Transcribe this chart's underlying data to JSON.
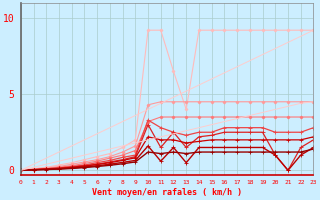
{
  "xlabel": "Vent moyen/en rafales ( km/h )",
  "background_color": "#cceeff",
  "grid_color": "#aacccc",
  "xlim": [
    0,
    23
  ],
  "ylim": [
    -0.3,
    11
  ],
  "yticks": [
    0,
    5,
    10
  ],
  "xticks": [
    0,
    1,
    2,
    3,
    4,
    5,
    6,
    7,
    8,
    9,
    10,
    11,
    12,
    13,
    14,
    15,
    16,
    17,
    18,
    19,
    20,
    21,
    22,
    23
  ],
  "series": [
    {
      "x": [
        0,
        1,
        2,
        3,
        4,
        5,
        6,
        7,
        8,
        9,
        10,
        11,
        12,
        13,
        14,
        15,
        16,
        17,
        18,
        19,
        20,
        21,
        22,
        23
      ],
      "y": [
        0,
        0.1,
        0.2,
        0.35,
        0.5,
        0.7,
        0.9,
        1.1,
        1.5,
        2.0,
        9.2,
        9.2,
        6.5,
        4.0,
        9.2,
        9.2,
        9.2,
        9.2,
        9.2,
        9.2,
        9.2,
        9.2,
        9.2,
        9.2
      ],
      "color": "#ffbbbb",
      "lw": 0.8,
      "marker": "D",
      "ms": 1.5
    },
    {
      "x": [
        0,
        1,
        2,
        3,
        4,
        5,
        6,
        7,
        8,
        9,
        10,
        11,
        12,
        13,
        14,
        15,
        16,
        17,
        18,
        19,
        20,
        21,
        22,
        23
      ],
      "y": [
        0,
        0.1,
        0.15,
        0.25,
        0.4,
        0.55,
        0.7,
        0.9,
        1.2,
        1.6,
        4.3,
        4.5,
        4.5,
        4.5,
        4.5,
        4.5,
        4.5,
        4.5,
        4.5,
        4.5,
        4.5,
        4.5,
        4.5,
        4.5
      ],
      "color": "#ff9999",
      "lw": 0.8,
      "marker": "D",
      "ms": 1.5
    },
    {
      "x": [
        0,
        1,
        2,
        3,
        4,
        5,
        6,
        7,
        8,
        9,
        10,
        11,
        12,
        13,
        14,
        15,
        16,
        17,
        18,
        19,
        20,
        21,
        22,
        23
      ],
      "y": [
        0,
        0.05,
        0.1,
        0.2,
        0.3,
        0.45,
        0.6,
        0.8,
        1.0,
        1.3,
        3.2,
        3.5,
        3.5,
        3.5,
        3.5,
        3.5,
        3.5,
        3.5,
        3.5,
        3.5,
        3.5,
        3.5,
        3.5,
        3.5
      ],
      "color": "#ff7777",
      "lw": 0.8,
      "marker": "D",
      "ms": 1.5
    },
    {
      "x": [
        0,
        1,
        2,
        3,
        4,
        5,
        6,
        7,
        8,
        9,
        10,
        11,
        12,
        13,
        14,
        15,
        16,
        17,
        18,
        19,
        20,
        21,
        22,
        23
      ],
      "y": [
        0,
        0.05,
        0.1,
        0.15,
        0.25,
        0.35,
        0.5,
        0.65,
        0.85,
        1.0,
        3.3,
        2.8,
        2.5,
        2.3,
        2.5,
        2.5,
        2.8,
        2.8,
        2.8,
        2.8,
        2.5,
        2.5,
        2.5,
        2.8
      ],
      "color": "#ee4444",
      "lw": 0.9,
      "marker": "+",
      "ms": 3
    },
    {
      "x": [
        0,
        1,
        2,
        3,
        4,
        5,
        6,
        7,
        8,
        9,
        10,
        11,
        12,
        13,
        14,
        15,
        16,
        17,
        18,
        19,
        20,
        21,
        22,
        23
      ],
      "y": [
        0,
        0.05,
        0.1,
        0.15,
        0.2,
        0.3,
        0.4,
        0.55,
        0.7,
        0.9,
        3.0,
        1.5,
        2.5,
        1.5,
        2.2,
        2.3,
        2.5,
        2.5,
        2.5,
        2.5,
        1.0,
        0.0,
        1.5,
        2.0
      ],
      "color": "#dd2222",
      "lw": 0.9,
      "marker": "+",
      "ms": 3
    },
    {
      "x": [
        0,
        1,
        2,
        3,
        4,
        5,
        6,
        7,
        8,
        9,
        10,
        11,
        12,
        13,
        14,
        15,
        16,
        17,
        18,
        19,
        20,
        21,
        22,
        23
      ],
      "y": [
        0,
        0.04,
        0.08,
        0.12,
        0.2,
        0.28,
        0.38,
        0.5,
        0.65,
        0.82,
        2.2,
        2.0,
        2.0,
        1.8,
        1.9,
        2.0,
        2.0,
        2.0,
        2.0,
        2.0,
        2.0,
        2.0,
        2.0,
        2.2
      ],
      "color": "#cc0000",
      "lw": 0.9,
      "marker": "+",
      "ms": 3
    },
    {
      "x": [
        0,
        1,
        2,
        3,
        4,
        5,
        6,
        7,
        8,
        9,
        10,
        11,
        12,
        13,
        14,
        15,
        16,
        17,
        18,
        19,
        20,
        21,
        22,
        23
      ],
      "y": [
        0,
        0.03,
        0.06,
        0.1,
        0.15,
        0.22,
        0.3,
        0.4,
        0.52,
        0.65,
        1.6,
        0.6,
        1.5,
        0.5,
        1.5,
        1.5,
        1.5,
        1.5,
        1.5,
        1.5,
        1.0,
        0.0,
        1.0,
        1.5
      ],
      "color": "#bb0000",
      "lw": 1.0,
      "marker": "+",
      "ms": 3
    },
    {
      "x": [
        0,
        1,
        2,
        3,
        4,
        5,
        6,
        7,
        8,
        9,
        10,
        11,
        12,
        13,
        14,
        15,
        16,
        17,
        18,
        19,
        20,
        21,
        22,
        23
      ],
      "y": [
        0,
        0.03,
        0.05,
        0.08,
        0.12,
        0.18,
        0.25,
        0.33,
        0.43,
        0.55,
        1.2,
        1.1,
        1.2,
        1.1,
        1.2,
        1.2,
        1.2,
        1.2,
        1.2,
        1.2,
        1.2,
        1.2,
        1.2,
        1.4
      ],
      "color": "#990000",
      "lw": 1.0,
      "marker": "+",
      "ms": 2.5
    },
    {
      "x": [
        0,
        1,
        2,
        3,
        4,
        5,
        6,
        7,
        8,
        9,
        10,
        11,
        12,
        13,
        14,
        15,
        16,
        17,
        18,
        19,
        20,
        21,
        22,
        23
      ],
      "y": [
        0,
        0.4,
        0.8,
        1.2,
        1.6,
        2.0,
        2.4,
        2.8,
        3.2,
        3.6,
        4.0,
        4.4,
        4.8,
        5.2,
        5.6,
        6.0,
        6.4,
        6.8,
        7.2,
        7.6,
        8.0,
        8.4,
        8.8,
        9.2
      ],
      "color": "#ffcccc",
      "lw": 0.7,
      "marker": null,
      "ms": 0
    },
    {
      "x": [
        0,
        1,
        2,
        3,
        4,
        5,
        6,
        7,
        8,
        9,
        10,
        11,
        12,
        13,
        14,
        15,
        16,
        17,
        18,
        19,
        20,
        21,
        22,
        23
      ],
      "y": [
        0,
        0.2,
        0.4,
        0.6,
        0.8,
        1.0,
        1.2,
        1.4,
        1.6,
        1.8,
        2.0,
        2.2,
        2.4,
        2.6,
        2.8,
        3.0,
        3.2,
        3.4,
        3.6,
        3.8,
        4.0,
        4.2,
        4.4,
        4.5
      ],
      "color": "#ffcccc",
      "lw": 0.7,
      "marker": null,
      "ms": 0
    }
  ]
}
